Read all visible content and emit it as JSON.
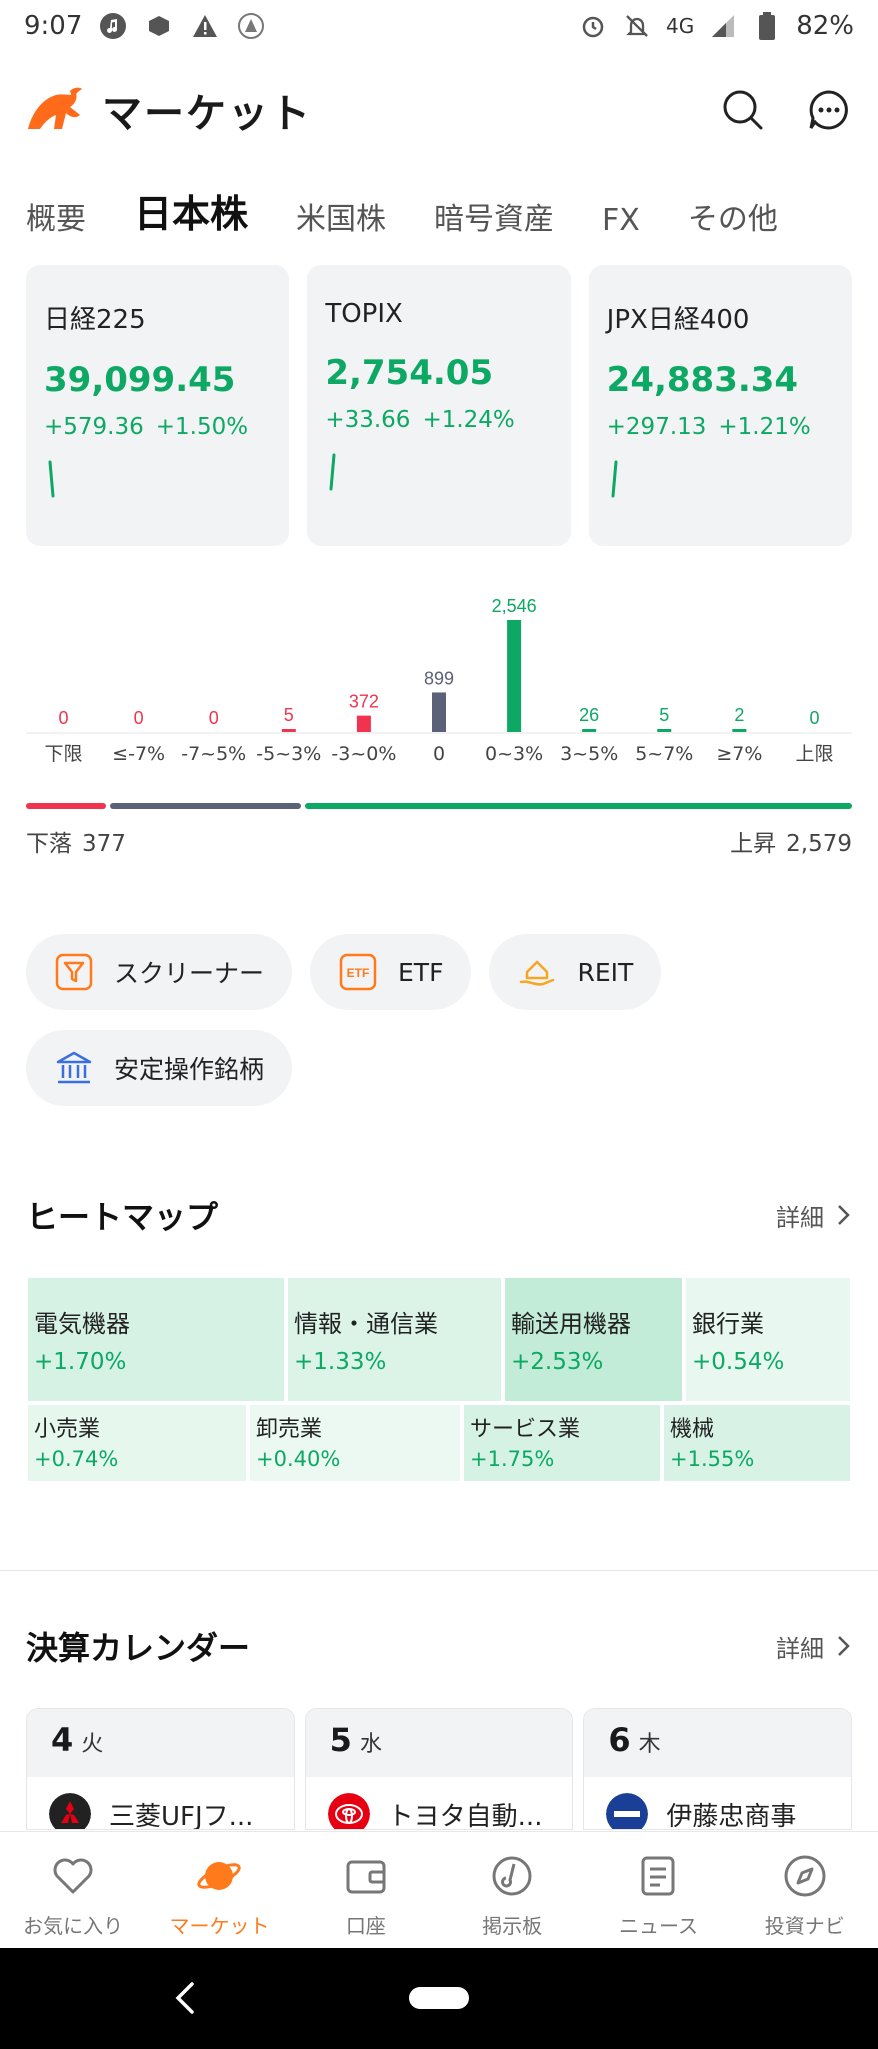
{
  "status_bar": {
    "time": "9:07",
    "network": "4G",
    "battery": "82%"
  },
  "header": {
    "title": "マーケット",
    "icons": [
      "search-icon",
      "chat-icon"
    ]
  },
  "tabs": [
    {
      "label": "概要",
      "active": false
    },
    {
      "label": "日本株",
      "active": true
    },
    {
      "label": "米国株",
      "active": false
    },
    {
      "label": "暗号資産",
      "active": false
    },
    {
      "label": "FX",
      "active": false
    },
    {
      "label": "その他",
      "active": false
    }
  ],
  "indices": [
    {
      "name": "日経225",
      "value": "39,099.45",
      "change": "+579.36",
      "pct": "+1.50%"
    },
    {
      "name": "TOPIX",
      "value": "2,754.05",
      "change": "+33.66",
      "pct": "+1.24%"
    },
    {
      "name": "JPX日経400",
      "value": "24,883.34",
      "change": "+297.13",
      "pct": "+1.21%"
    }
  ],
  "distribution": {
    "colors": {
      "down": "#f0344f",
      "flat": "#5b6278",
      "up": "#0da864"
    },
    "buckets": [
      {
        "label": "下限",
        "count": 0,
        "dir": "down"
      },
      {
        "label": "≤-7%",
        "count": 0,
        "dir": "down"
      },
      {
        "label": "-7~5%",
        "count": 0,
        "dir": "down"
      },
      {
        "label": "-5~3%",
        "count": 5,
        "dir": "down"
      },
      {
        "label": "-3~0%",
        "count": 372,
        "dir": "down"
      },
      {
        "label": "0",
        "count": 899,
        "dir": "flat"
      },
      {
        "label": "0~3%",
        "count": 2546,
        "dir": "up"
      },
      {
        "label": "3~5%",
        "count": 26,
        "dir": "up"
      },
      {
        "label": "5~7%",
        "count": 5,
        "dir": "up"
      },
      {
        "label": "≥7%",
        "count": 2,
        "dir": "up"
      },
      {
        "label": "上限",
        "count": 0,
        "dir": "up"
      }
    ],
    "display_counts": [
      "0",
      "0",
      "0",
      "5",
      "372",
      "899",
      "2,546",
      "26",
      "5",
      "2",
      "0"
    ],
    "down_label": "下落",
    "down_total": "377",
    "up_label": "上昇",
    "up_total": "2,579",
    "bar_split": {
      "down": 377,
      "flat": 899,
      "up": 2579
    }
  },
  "chips": [
    {
      "label": "スクリーナー",
      "icon": "screener-icon"
    },
    {
      "label": "ETF",
      "icon": "etf-icon"
    },
    {
      "label": "REIT",
      "icon": "reit-icon"
    },
    {
      "label": "安定操作銘柄",
      "icon": "bank-icon"
    }
  ],
  "heatmap": {
    "title": "ヒートマップ",
    "more": "詳細",
    "row1": [
      {
        "name": "電気機器",
        "pct": "+1.70%"
      },
      {
        "name": "情報・通信業",
        "pct": "+1.33%"
      },
      {
        "name": "輸送用機器",
        "pct": "+2.53%"
      },
      {
        "name": "銀行業",
        "pct": "+0.54%"
      }
    ],
    "row2": [
      {
        "name": "小売業",
        "pct": "+0.74%"
      },
      {
        "name": "卸売業",
        "pct": "+0.40%"
      },
      {
        "name": "サービス業",
        "pct": "+1.75%"
      },
      {
        "name": "機械",
        "pct": "+1.55%"
      }
    ]
  },
  "calendar": {
    "title": "決算カレンダー",
    "more": "詳細",
    "days": [
      {
        "day": "4",
        "weekday": "火",
        "company": "三菱UFJフ..."
      },
      {
        "day": "5",
        "weekday": "水",
        "company": "トヨタ自動..."
      },
      {
        "day": "6",
        "weekday": "木",
        "company": "伊藤忠商事"
      }
    ]
  },
  "bottom_nav": [
    {
      "label": "お気に入り",
      "icon": "heart-icon",
      "active": false
    },
    {
      "label": "マーケット",
      "icon": "planet-icon",
      "active": true
    },
    {
      "label": "口座",
      "icon": "wallet-icon",
      "active": false
    },
    {
      "label": "掲示板",
      "icon": "board-icon",
      "active": false
    },
    {
      "label": "ニュース",
      "icon": "news-icon",
      "active": false
    },
    {
      "label": "投資ナビ",
      "icon": "compass-icon",
      "active": false
    }
  ]
}
